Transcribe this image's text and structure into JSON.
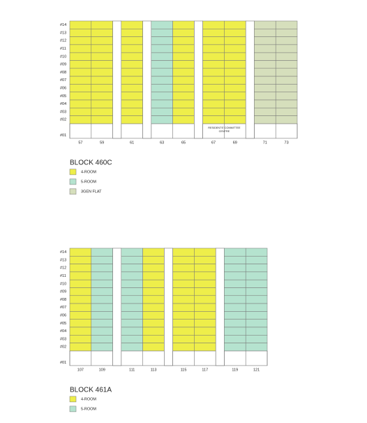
{
  "blocks": [
    {
      "title": "BLOCK 460C",
      "floors": [
        "#14",
        "#13",
        "#12",
        "#11",
        "#10",
        "#09",
        "#08",
        "#07",
        "#06",
        "#05",
        "#04",
        "#03",
        "#02",
        "#01"
      ],
      "groups": [
        {
          "units": [
            {
              "label": "57",
              "type": "4-ROOM"
            },
            {
              "label": "59",
              "type": "4-ROOM"
            }
          ]
        },
        {
          "units": [
            {
              "label": "61",
              "type": "4-ROOM"
            }
          ]
        },
        {
          "units": [
            {
              "label": "63",
              "type": "5-ROOM"
            },
            {
              "label": "65",
              "type": "4-ROOM"
            }
          ]
        },
        {
          "units": [
            {
              "label": "67",
              "type": "4-ROOM"
            },
            {
              "label": "69",
              "type": "4-ROOM"
            }
          ],
          "note": [
            "RESIDENTS' COMMITTEE",
            "CENTRE"
          ]
        },
        {
          "units": [
            {
              "label": "71",
              "type": "3GEN FLAT"
            },
            {
              "label": "73",
              "type": "3GEN FLAT"
            }
          ]
        }
      ],
      "legend": [
        {
          "label": "4-ROOM",
          "color": "#eeee4a"
        },
        {
          "label": "5-ROOM",
          "color": "#b5e3cf"
        },
        {
          "label": "3GEN FLAT",
          "color": "#d6dfbc"
        }
      ]
    },
    {
      "title": "BLOCK 461A",
      "floors": [
        "#14",
        "#13",
        "#12",
        "#11",
        "#10",
        "#09",
        "#08",
        "#07",
        "#06",
        "#05",
        "#04",
        "#03",
        "#02",
        "#01"
      ],
      "groups": [
        {
          "units": [
            {
              "label": "107",
              "type": "4-ROOM"
            },
            {
              "label": "109",
              "type": "5-ROOM"
            }
          ]
        },
        {
          "units": [
            {
              "label": "111",
              "type": "5-ROOM"
            },
            {
              "label": "113",
              "type": "4-ROOM"
            }
          ]
        },
        {
          "units": [
            {
              "label": "115",
              "type": "4-ROOM"
            },
            {
              "label": "117",
              "type": "4-ROOM"
            }
          ]
        },
        {
          "units": [
            {
              "label": "119",
              "type": "5-ROOM"
            },
            {
              "label": "121",
              "type": "5-ROOM"
            }
          ]
        }
      ],
      "legend": [
        {
          "label": "4-ROOM",
          "color": "#eeee4a"
        },
        {
          "label": "5-ROOM",
          "color": "#b5e3cf"
        }
      ]
    }
  ]
}
